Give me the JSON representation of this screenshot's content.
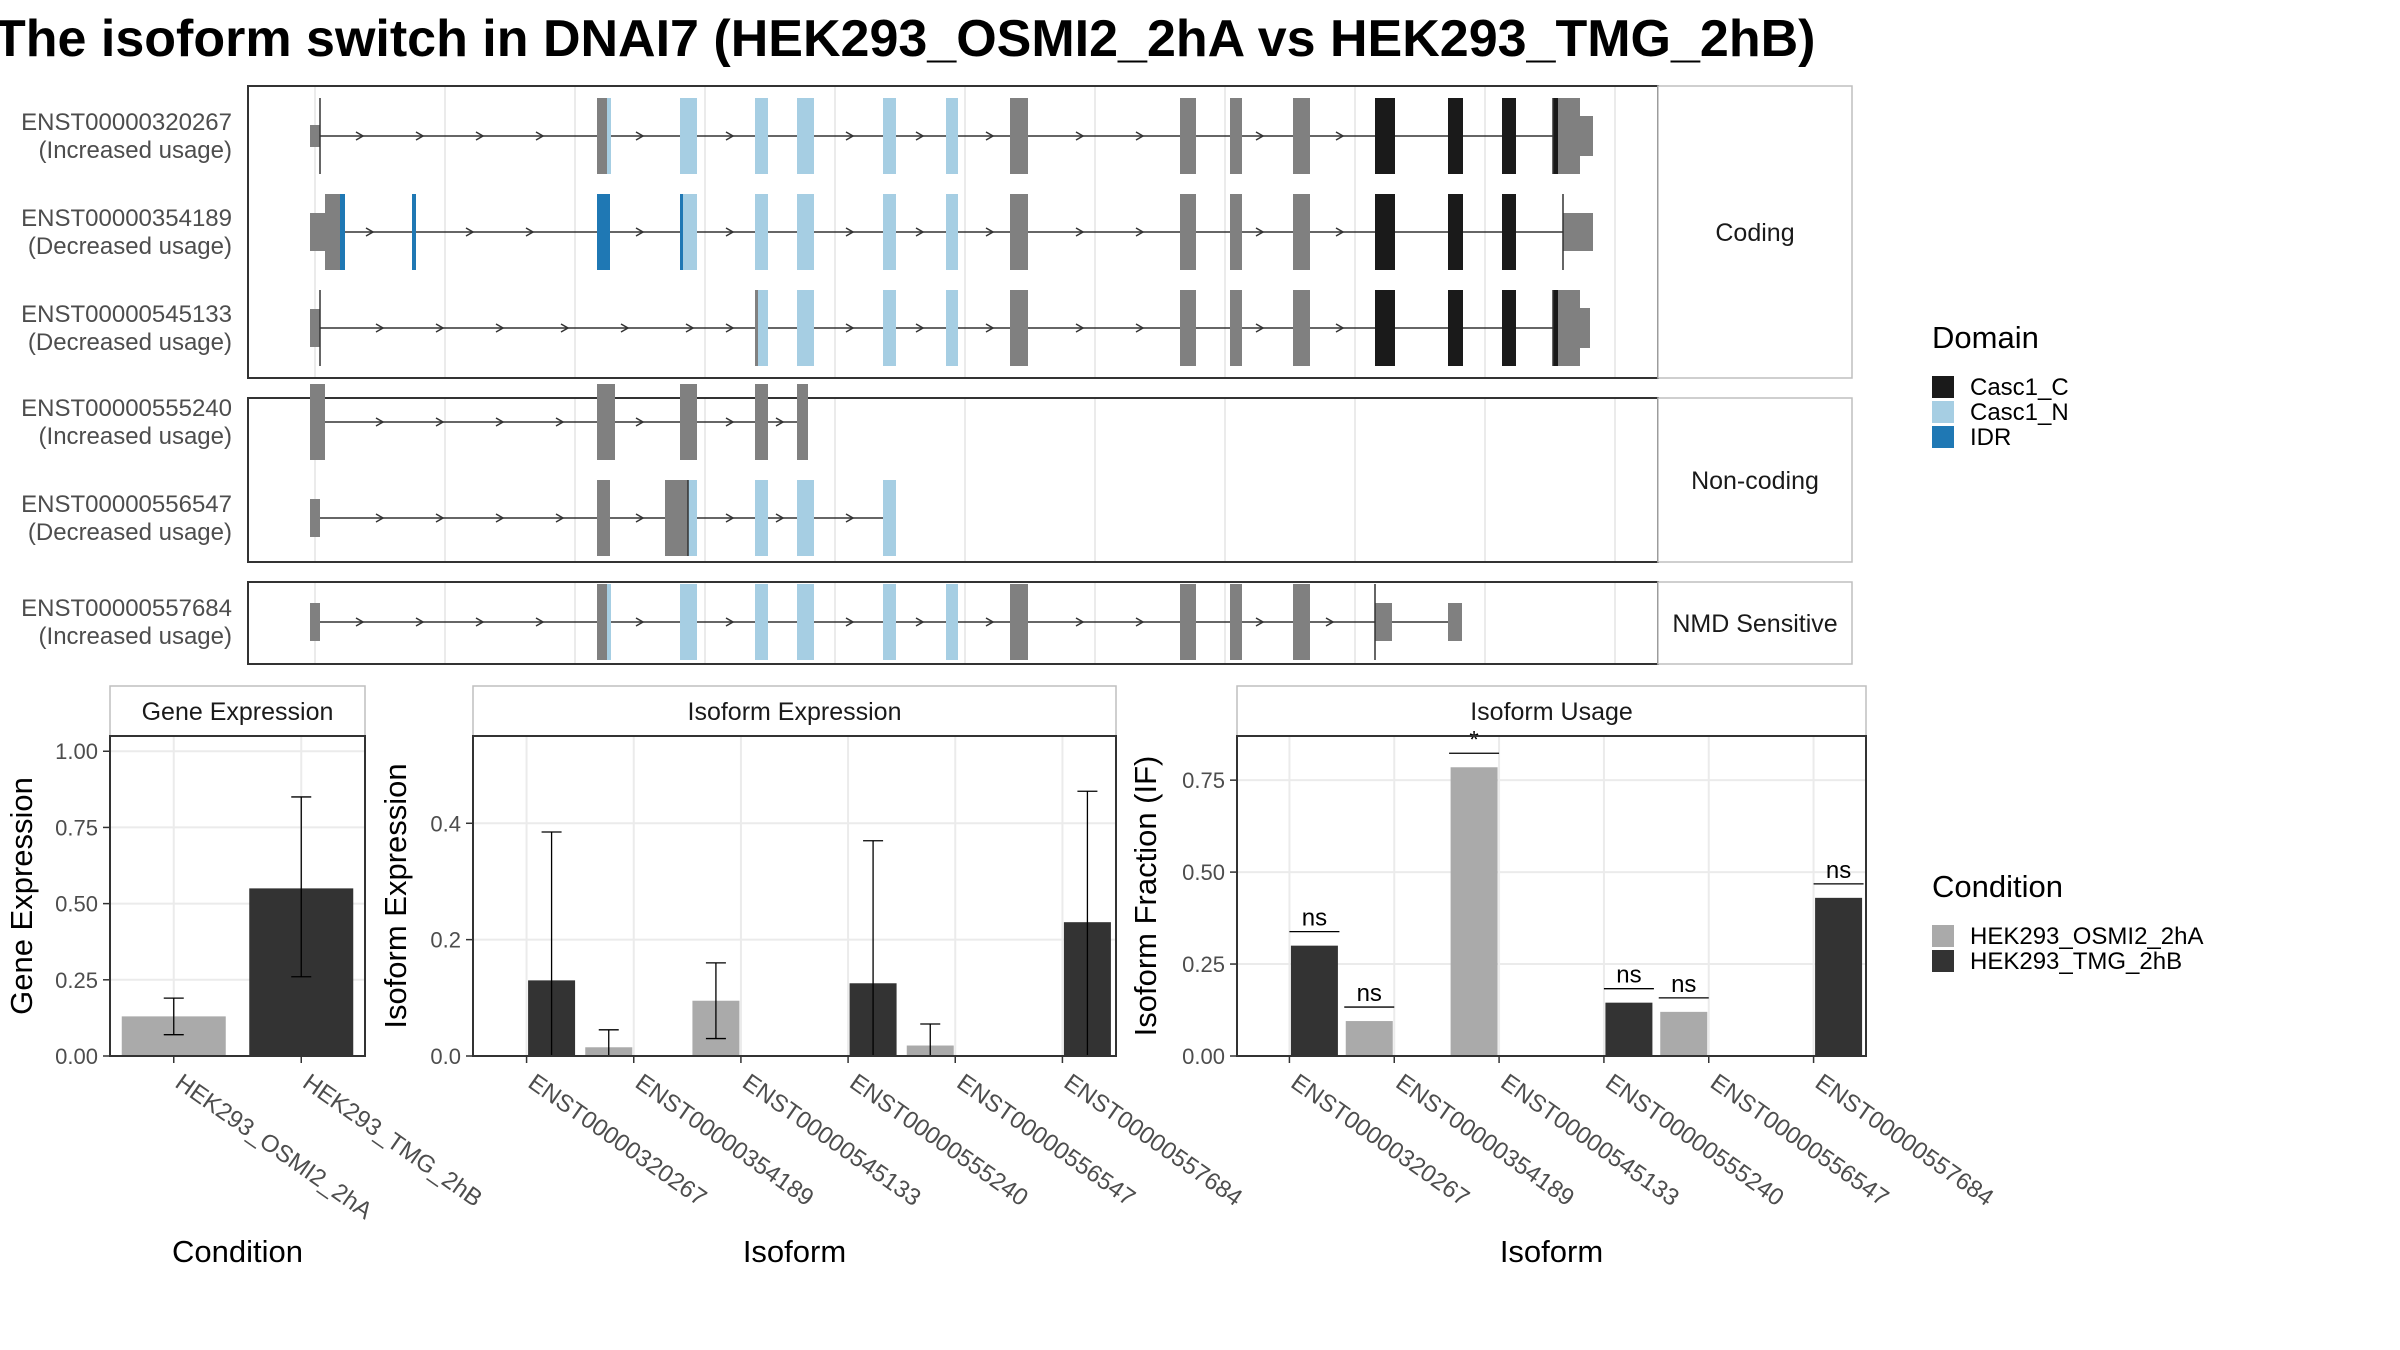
{
  "title": "The isoform switch in DNAI7 (HEK293_OSMI2_2hA vs HEK293_TMG_2hB)",
  "structure_panel": {
    "groups": [
      {
        "label": "Coding",
        "isoforms": [
          {
            "id": "ENST00000320267",
            "usage": "(Increased usage)"
          },
          {
            "id": "ENST00000354189",
            "usage": "(Decreased usage)"
          },
          {
            "id": "ENST00000545133",
            "usage": "(Decreased usage)"
          }
        ]
      },
      {
        "label": "Non-coding",
        "isoforms": [
          {
            "id": "ENST00000555240",
            "usage": "(Increased usage)"
          },
          {
            "id": "ENST00000556547",
            "usage": "(Decreased usage)"
          }
        ]
      },
      {
        "label": "NMD Sensitive",
        "isoforms": [
          {
            "id": "ENST00000557684",
            "usage": "(Increased usage)"
          }
        ]
      }
    ]
  },
  "legend_domain": {
    "title": "Domain",
    "items": [
      {
        "label": "Casc1_C",
        "color": "#1a1a1a"
      },
      {
        "label": "Casc1_N",
        "color": "#a6cee3"
      },
      {
        "label": "IDR",
        "color": "#1f78b4"
      }
    ]
  },
  "legend_condition": {
    "title": "Condition",
    "items": [
      {
        "label": "HEK293_OSMI2_2hA",
        "color": "#aaaaaa"
      },
      {
        "label": "HEK293_TMG_2hB",
        "color": "#333333"
      }
    ]
  },
  "chart_data": [
    {
      "type": "bar",
      "title": "Gene Expression",
      "xlabel": "Condition",
      "ylabel": "Gene Expression",
      "ylim": [
        0,
        1.05
      ],
      "yticks": [
        0,
        0.25,
        0.5,
        0.75,
        1.0
      ],
      "ytick_labels": [
        "0.00",
        "0.25",
        "0.50",
        "0.75",
        "1.00"
      ],
      "categories": [
        "HEK293_OSMI2_2hA",
        "HEK293_TMG_2hB"
      ],
      "values": [
        0.13,
        0.55
      ],
      "err_low": [
        0.07,
        0.26
      ],
      "err_high": [
        0.19,
        0.85
      ],
      "colors": [
        "#aaaaaa",
        "#333333"
      ]
    },
    {
      "type": "bar",
      "title": "Isoform Expression",
      "xlabel": "Isoform",
      "ylabel": "Isoform Expression",
      "ylim": [
        0,
        0.55
      ],
      "yticks": [
        0,
        0.2,
        0.4
      ],
      "ytick_labels": [
        "0.0",
        "0.2",
        "0.4"
      ],
      "categories": [
        "ENST00000320267",
        "ENST00000354189",
        "ENST00000545133",
        "ENST00000555240",
        "ENST00000556547",
        "ENST00000557684"
      ],
      "series": [
        {
          "name": "HEK293_OSMI2_2hA",
          "values": [
            0,
            0.015,
            0.095,
            0,
            0.018,
            0
          ],
          "err_low": [
            0,
            0,
            0.03,
            0,
            0,
            0
          ],
          "err_high": [
            0,
            0.045,
            0.16,
            0,
            0.055,
            0
          ]
        },
        {
          "name": "HEK293_TMG_2hB",
          "values": [
            0.13,
            0,
            0,
            0.125,
            0,
            0.23
          ],
          "err_low": [
            0,
            0,
            0,
            0,
            0,
            0
          ],
          "err_high": [
            0.385,
            0,
            0,
            0.37,
            0,
            0.455
          ]
        }
      ]
    },
    {
      "type": "bar",
      "title": "Isoform Usage",
      "xlabel": "Isoform",
      "ylabel": "Isoform Fraction (IF)",
      "ylim": [
        0,
        0.87
      ],
      "yticks": [
        0,
        0.25,
        0.5,
        0.75
      ],
      "ytick_labels": [
        "0.00",
        "0.25",
        "0.50",
        "0.75"
      ],
      "categories": [
        "ENST00000320267",
        "ENST00000354189",
        "ENST00000545133",
        "ENST00000555240",
        "ENST00000556547",
        "ENST00000557684"
      ],
      "series": [
        {
          "name": "HEK293_OSMI2_2hA",
          "values": [
            0,
            0.095,
            0.785,
            0,
            0.12,
            0
          ]
        },
        {
          "name": "HEK293_TMG_2hB",
          "values": [
            0.3,
            0,
            0,
            0.145,
            0,
            0.43
          ]
        }
      ],
      "significance": [
        "ns",
        "ns",
        "*",
        "ns",
        "ns",
        "ns"
      ]
    }
  ]
}
